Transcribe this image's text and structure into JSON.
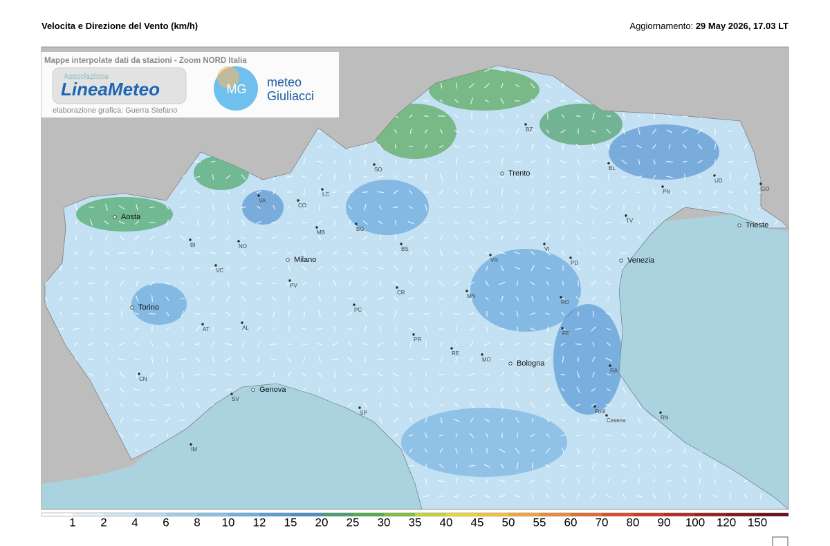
{
  "header": {
    "title": "Velocita e Direzione del Vento  (km/h)",
    "update_label": "Aggiornamento:",
    "update_value": "29 May 2026, 17.03 LT"
  },
  "overlay": {
    "subtitle": "Mappe interpolate dati da stazioni - Zoom NORD Italia",
    "logo1_top": "Associazione",
    "logo1_main": "LineaMeteo",
    "credit": "elaborazione grafica: Guerra Stefano",
    "logo2_icon": "MG",
    "logo2_line1": "meteo",
    "logo2_line2": "Giuliacci"
  },
  "cities": [
    "Aosta",
    "Torino",
    "Milano",
    "Genova",
    "Trento",
    "Venezia",
    "Bologna",
    "Trieste",
    "BZ",
    "SO",
    "BL",
    "PN",
    "UD",
    "GO",
    "VA",
    "CO",
    "LC",
    "BI",
    "NO",
    "MB",
    "BG",
    "BS",
    "VR",
    "VI",
    "TV",
    "PD",
    "VC",
    "PV",
    "CR",
    "MN",
    "PC",
    "RO",
    "AT",
    "AL",
    "PR",
    "FE",
    "RE",
    "MO",
    "RA",
    "CN",
    "SV",
    "SP",
    "Forli",
    "Cesena",
    "RN",
    "IM"
  ],
  "legend": {
    "ticks": [
      1,
      2,
      4,
      6,
      8,
      10,
      12,
      15,
      20,
      25,
      30,
      35,
      40,
      45,
      50,
      55,
      60,
      70,
      80,
      90,
      100,
      120,
      150
    ],
    "colors": [
      "#ffffff",
      "#e6f3fb",
      "#cfe8f7",
      "#b8dcf3",
      "#9fcfee",
      "#86c1e8",
      "#6db2e2",
      "#559fd8",
      "#4a8fcc",
      "#4aa070",
      "#52b04c",
      "#7fc241",
      "#c5d63a",
      "#ecd83a",
      "#f5c23a",
      "#f4a63a",
      "#ef8a35",
      "#e56c2f",
      "#d9502a",
      "#c93a26",
      "#b52a22",
      "#9c1f1e",
      "#82161a",
      "#6a0f16"
    ]
  }
}
